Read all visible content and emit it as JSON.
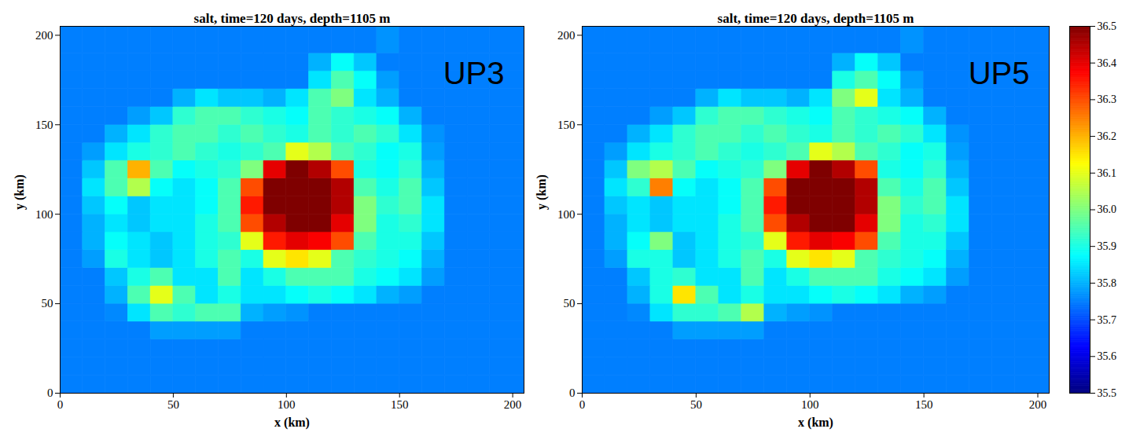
{
  "chart_data": [
    {
      "type": "heatmap",
      "title": "salt, time=120 days, depth=1105 m",
      "annotation": "UP3",
      "x_label": "x (km)",
      "y_label": "y (km)",
      "xlim": [
        0,
        205
      ],
      "ylim": [
        0,
        205
      ],
      "xticks": [
        0,
        50,
        100,
        150,
        200
      ],
      "yticks": [
        0,
        50,
        100,
        150,
        200
      ],
      "x_edges": [
        0,
        10,
        20,
        30,
        40,
        50,
        60,
        70,
        80,
        90,
        100,
        110,
        120,
        130,
        140,
        150,
        160,
        170,
        180,
        190,
        205
      ],
      "y_edges": [
        0,
        10,
        20,
        30,
        40,
        50,
        60,
        70,
        80,
        90,
        100,
        110,
        120,
        130,
        140,
        150,
        160,
        170,
        180,
        190,
        205
      ],
      "cells": [
        [
          35.75,
          35.75,
          35.75,
          35.75,
          35.75,
          35.75,
          35.75,
          35.75,
          35.75,
          35.75,
          35.75,
          35.75,
          35.75,
          35.75,
          35.75,
          35.75,
          35.75,
          35.75,
          35.75,
          35.75
        ],
        [
          35.75,
          35.75,
          35.75,
          35.75,
          35.75,
          35.75,
          35.75,
          35.75,
          35.75,
          35.75,
          35.75,
          35.75,
          35.75,
          35.75,
          35.75,
          35.75,
          35.75,
          35.75,
          35.75,
          35.75
        ],
        [
          35.75,
          35.75,
          35.75,
          35.75,
          35.75,
          35.75,
          35.75,
          35.75,
          35.75,
          35.75,
          35.75,
          35.75,
          35.75,
          35.75,
          35.75,
          35.75,
          35.75,
          35.75,
          35.75,
          35.75
        ],
        [
          35.75,
          35.75,
          35.75,
          35.75,
          35.78,
          35.78,
          35.78,
          35.78,
          35.75,
          35.75,
          35.75,
          35.75,
          35.75,
          35.75,
          35.75,
          35.75,
          35.75,
          35.75,
          35.75,
          35.75
        ],
        [
          35.75,
          35.75,
          35.76,
          35.85,
          35.95,
          35.92,
          35.95,
          35.95,
          35.8,
          35.78,
          35.77,
          35.75,
          35.75,
          35.75,
          35.75,
          35.75,
          35.75,
          35.75,
          35.75,
          35.75
        ],
        [
          35.75,
          35.75,
          35.8,
          35.95,
          36.1,
          35.95,
          35.85,
          35.9,
          35.85,
          35.85,
          35.88,
          35.9,
          35.88,
          35.85,
          35.8,
          35.78,
          35.75,
          35.75,
          35.75,
          35.75
        ],
        [
          35.75,
          35.75,
          35.82,
          35.9,
          35.95,
          35.85,
          35.85,
          35.95,
          35.85,
          35.9,
          35.95,
          35.95,
          35.95,
          35.9,
          35.88,
          35.85,
          35.78,
          35.75,
          35.75,
          35.75
        ],
        [
          35.75,
          35.78,
          35.9,
          35.85,
          35.82,
          35.85,
          35.9,
          35.95,
          35.9,
          36.1,
          36.15,
          36.1,
          35.95,
          35.92,
          35.9,
          35.88,
          35.8,
          35.75,
          35.75,
          35.75
        ],
        [
          35.75,
          35.8,
          35.88,
          35.85,
          35.82,
          35.85,
          35.9,
          35.92,
          36.1,
          36.35,
          36.4,
          36.38,
          36.3,
          35.95,
          35.9,
          35.9,
          35.82,
          35.75,
          35.75,
          35.75
        ],
        [
          35.75,
          35.8,
          35.85,
          35.82,
          35.85,
          35.85,
          35.9,
          35.95,
          36.3,
          36.45,
          36.5,
          36.5,
          36.4,
          36.0,
          35.9,
          35.92,
          35.85,
          35.75,
          35.75,
          35.75
        ],
        [
          35.75,
          35.82,
          35.88,
          35.82,
          35.85,
          35.85,
          35.88,
          35.95,
          36.35,
          36.5,
          36.5,
          36.5,
          36.45,
          36.0,
          35.92,
          35.95,
          35.85,
          35.75,
          35.75,
          35.75
        ],
        [
          35.75,
          35.85,
          35.95,
          36.05,
          35.88,
          35.85,
          35.88,
          35.95,
          36.3,
          36.5,
          36.5,
          36.5,
          36.45,
          35.95,
          35.9,
          35.95,
          35.82,
          35.75,
          35.75,
          35.75
        ],
        [
          35.75,
          35.82,
          35.95,
          36.2,
          35.95,
          35.88,
          35.9,
          35.92,
          36.0,
          36.4,
          36.5,
          36.45,
          36.3,
          35.9,
          35.88,
          35.92,
          35.8,
          35.75,
          35.75,
          35.75
        ],
        [
          35.75,
          35.78,
          35.85,
          35.9,
          35.92,
          35.95,
          35.92,
          35.9,
          35.92,
          35.95,
          36.1,
          36.05,
          35.95,
          35.92,
          35.88,
          35.9,
          35.78,
          35.75,
          35.75,
          35.75
        ],
        [
          35.75,
          35.75,
          35.8,
          35.85,
          35.92,
          35.95,
          35.95,
          35.92,
          35.95,
          35.92,
          35.9,
          35.95,
          35.92,
          35.95,
          35.92,
          35.85,
          35.77,
          35.75,
          35.75,
          35.75
        ],
        [
          35.75,
          35.75,
          35.75,
          35.78,
          35.82,
          35.92,
          35.95,
          35.95,
          35.92,
          35.9,
          35.88,
          35.95,
          35.92,
          35.9,
          35.88,
          35.8,
          35.75,
          35.75,
          35.75,
          35.75
        ],
        [
          35.75,
          35.75,
          35.75,
          35.75,
          35.75,
          35.8,
          35.85,
          35.82,
          35.82,
          35.8,
          35.85,
          35.95,
          36.0,
          35.85,
          35.8,
          35.75,
          35.75,
          35.75,
          35.75,
          35.75
        ],
        [
          35.75,
          35.75,
          35.75,
          35.75,
          35.75,
          35.75,
          35.75,
          35.75,
          35.75,
          35.75,
          35.75,
          35.85,
          35.95,
          35.88,
          35.78,
          35.75,
          35.75,
          35.75,
          35.75,
          35.75
        ],
        [
          35.75,
          35.75,
          35.75,
          35.75,
          35.75,
          35.75,
          35.75,
          35.75,
          35.75,
          35.75,
          35.75,
          35.8,
          35.88,
          35.82,
          35.75,
          35.75,
          35.75,
          35.75,
          35.75,
          35.75
        ],
        [
          35.75,
          35.75,
          35.75,
          35.75,
          35.75,
          35.75,
          35.75,
          35.75,
          35.75,
          35.75,
          35.75,
          35.75,
          35.75,
          35.75,
          35.77,
          35.75,
          35.75,
          35.75,
          35.75,
          35.75
        ]
      ],
      "colorbar": {
        "range": [
          35.5,
          36.5
        ],
        "ticks": [
          35.5,
          35.6,
          35.7,
          35.8,
          35.9,
          {
            "value": 36,
            "label": "36.0"
          },
          36.1,
          36.2,
          36.3,
          36.4,
          36.5
        ]
      }
    },
    {
      "type": "heatmap",
      "title": "salt, time=120 days, depth=1105 m",
      "annotation": "UP5",
      "x_label": "x (km)",
      "y_label": "y (km)",
      "xlim": [
        0,
        205
      ],
      "ylim": [
        0,
        205
      ],
      "xticks": [
        0,
        50,
        100,
        150,
        200
      ],
      "yticks": [
        0,
        50,
        100,
        150,
        200
      ],
      "x_edges": [
        0,
        10,
        20,
        30,
        40,
        50,
        60,
        70,
        80,
        90,
        100,
        110,
        120,
        130,
        140,
        150,
        160,
        170,
        180,
        190,
        205
      ],
      "y_edges": [
        0,
        10,
        20,
        30,
        40,
        50,
        60,
        70,
        80,
        90,
        100,
        110,
        120,
        130,
        140,
        150,
        160,
        170,
        180,
        190,
        205
      ],
      "cells": [
        [
          35.75,
          35.75,
          35.75,
          35.75,
          35.75,
          35.75,
          35.75,
          35.75,
          35.75,
          35.75,
          35.75,
          35.75,
          35.75,
          35.75,
          35.75,
          35.75,
          35.75,
          35.75,
          35.75,
          35.75
        ],
        [
          35.75,
          35.75,
          35.75,
          35.75,
          35.75,
          35.75,
          35.75,
          35.75,
          35.75,
          35.75,
          35.75,
          35.75,
          35.75,
          35.75,
          35.75,
          35.75,
          35.75,
          35.75,
          35.75,
          35.75
        ],
        [
          35.75,
          35.75,
          35.75,
          35.75,
          35.75,
          35.75,
          35.75,
          35.75,
          35.75,
          35.75,
          35.75,
          35.75,
          35.75,
          35.75,
          35.75,
          35.75,
          35.75,
          35.75,
          35.75,
          35.75
        ],
        [
          35.75,
          35.75,
          35.75,
          35.75,
          35.78,
          35.78,
          35.78,
          35.78,
          35.75,
          35.75,
          35.75,
          35.75,
          35.75,
          35.75,
          35.75,
          35.75,
          35.75,
          35.75,
          35.75,
          35.75
        ],
        [
          35.75,
          35.75,
          35.76,
          35.85,
          35.92,
          35.92,
          35.95,
          36.05,
          35.8,
          35.78,
          35.77,
          35.75,
          35.75,
          35.75,
          35.75,
          35.75,
          35.75,
          35.75,
          35.75,
          35.75
        ],
        [
          35.75,
          35.75,
          35.8,
          35.9,
          36.15,
          35.95,
          35.85,
          35.9,
          35.85,
          35.85,
          35.88,
          35.9,
          35.88,
          35.85,
          35.8,
          35.78,
          35.75,
          35.75,
          35.75,
          35.75
        ],
        [
          35.75,
          35.75,
          35.82,
          35.9,
          35.92,
          35.85,
          35.85,
          35.95,
          35.85,
          35.9,
          35.95,
          35.95,
          35.95,
          35.9,
          35.88,
          35.85,
          35.78,
          35.75,
          35.75,
          35.75
        ],
        [
          35.75,
          35.78,
          35.9,
          35.9,
          35.82,
          35.85,
          35.9,
          35.95,
          35.9,
          36.1,
          36.15,
          36.1,
          35.95,
          35.92,
          35.9,
          35.88,
          35.8,
          35.75,
          35.75,
          35.75
        ],
        [
          35.75,
          35.8,
          35.88,
          36.0,
          35.82,
          35.85,
          35.9,
          35.92,
          36.1,
          36.35,
          36.4,
          36.38,
          36.3,
          35.95,
          35.9,
          35.9,
          35.82,
          35.75,
          35.75,
          35.75
        ],
        [
          35.75,
          35.8,
          35.85,
          35.82,
          35.85,
          35.85,
          35.9,
          35.95,
          36.3,
          36.45,
          36.5,
          36.5,
          36.4,
          36.0,
          35.9,
          35.92,
          35.85,
          35.75,
          35.75,
          35.75
        ],
        [
          35.75,
          35.82,
          35.85,
          35.82,
          35.85,
          35.85,
          35.88,
          35.95,
          36.35,
          36.5,
          36.5,
          36.5,
          36.45,
          36.0,
          35.92,
          35.95,
          35.85,
          35.75,
          35.75,
          35.75
        ],
        [
          35.75,
          35.85,
          35.92,
          36.25,
          35.88,
          35.85,
          35.88,
          35.95,
          36.3,
          36.5,
          36.5,
          36.5,
          36.45,
          35.95,
          35.9,
          35.95,
          35.82,
          35.75,
          35.75,
          35.75
        ],
        [
          35.75,
          35.82,
          36.0,
          36.05,
          35.95,
          35.88,
          35.9,
          35.92,
          36.0,
          36.4,
          36.5,
          36.45,
          36.3,
          35.9,
          35.88,
          35.92,
          35.8,
          35.75,
          35.75,
          35.75
        ],
        [
          35.75,
          35.78,
          35.85,
          35.9,
          35.92,
          35.95,
          35.92,
          35.9,
          35.92,
          35.95,
          36.1,
          36.05,
          35.95,
          35.92,
          35.88,
          35.9,
          35.78,
          35.75,
          35.75,
          35.75
        ],
        [
          35.75,
          35.75,
          35.8,
          35.85,
          35.92,
          35.95,
          35.95,
          35.92,
          35.95,
          35.92,
          35.9,
          35.95,
          35.92,
          35.95,
          35.92,
          35.85,
          35.77,
          35.75,
          35.75,
          35.75
        ],
        [
          35.75,
          35.75,
          35.75,
          35.78,
          35.82,
          35.92,
          35.95,
          35.95,
          35.92,
          35.9,
          35.88,
          35.95,
          35.92,
          35.9,
          35.88,
          35.8,
          35.75,
          35.75,
          35.75,
          35.75
        ],
        [
          35.75,
          35.75,
          35.75,
          35.75,
          35.75,
          35.8,
          35.85,
          35.82,
          35.82,
          35.8,
          35.85,
          36.0,
          36.1,
          35.85,
          35.8,
          35.75,
          35.75,
          35.75,
          35.75,
          35.75
        ],
        [
          35.75,
          35.75,
          35.75,
          35.75,
          35.75,
          35.75,
          35.75,
          35.75,
          35.75,
          35.75,
          35.75,
          35.9,
          35.95,
          35.88,
          35.78,
          35.75,
          35.75,
          35.75,
          35.75,
          35.75
        ],
        [
          35.75,
          35.75,
          35.75,
          35.75,
          35.75,
          35.75,
          35.75,
          35.75,
          35.75,
          35.75,
          35.75,
          35.8,
          35.88,
          35.82,
          35.75,
          35.75,
          35.75,
          35.75,
          35.75,
          35.75
        ],
        [
          35.75,
          35.75,
          35.75,
          35.75,
          35.75,
          35.75,
          35.75,
          35.75,
          35.75,
          35.75,
          35.75,
          35.75,
          35.75,
          35.75,
          35.77,
          35.75,
          35.75,
          35.75,
          35.75,
          35.75
        ]
      ],
      "colorbar": {
        "range": [
          35.5,
          36.5
        ],
        "ticks": [
          35.5,
          35.6,
          35.7,
          35.8,
          35.9,
          {
            "value": 36,
            "label": "36.0"
          },
          36.1,
          36.2,
          36.3,
          36.4,
          36.5
        ]
      }
    }
  ]
}
